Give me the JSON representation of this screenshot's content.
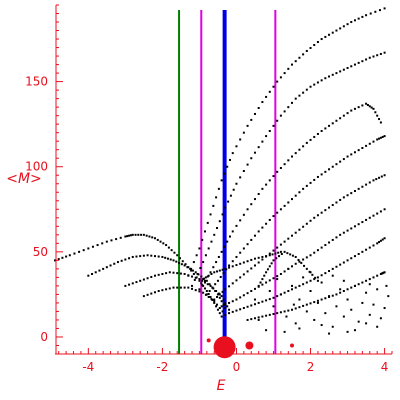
{
  "chart_data": {
    "type": "scatter",
    "title": "",
    "xlabel": "E",
    "ylabel": "<M>",
    "xlim": [
      -4.9,
      4.2
    ],
    "ylim": [
      -10,
      195
    ],
    "xticks": [
      -4,
      -2,
      0,
      2,
      4
    ],
    "yticks": [
      0,
      50,
      100,
      150
    ],
    "grid": false,
    "axis_color": "#e8101e",
    "point_color": "#000000",
    "vertical_lines": [
      {
        "x": -1.55,
        "color": "#008000",
        "width": 2
      },
      {
        "x": -0.95,
        "color": "#e000e0",
        "width": 2
      },
      {
        "x": -0.32,
        "color": "#0000e6",
        "width": 4
      },
      {
        "x": 1.05,
        "color": "#e000e0",
        "width": 2
      }
    ],
    "red_markers": [
      {
        "x": -0.32,
        "y": -6,
        "size": "large"
      },
      {
        "x": 0.35,
        "y": -5,
        "size": "small"
      },
      {
        "x": -0.75,
        "y": -2,
        "size": "tiny"
      },
      {
        "x": 1.5,
        "y": -5,
        "size": "tiny"
      }
    ],
    "series": [
      {
        "points": [
          [
            -4.9,
            45
          ],
          [
            -4.5,
            48
          ],
          [
            -4.0,
            52
          ],
          [
            -3.5,
            56
          ],
          [
            -3.0,
            59
          ],
          [
            -2.8,
            60
          ],
          [
            -2.5,
            60
          ],
          [
            -2.2,
            58
          ],
          [
            -1.9,
            54
          ],
          [
            -1.6,
            48
          ],
          [
            -1.3,
            41
          ],
          [
            -1.0,
            33
          ],
          [
            -0.8,
            27
          ],
          [
            -0.6,
            20
          ],
          [
            -0.4,
            12
          ]
        ]
      },
      {
        "points": [
          [
            -4.0,
            36
          ],
          [
            -3.6,
            40
          ],
          [
            -3.2,
            44
          ],
          [
            -2.8,
            47
          ],
          [
            -2.4,
            48
          ],
          [
            -2.0,
            47
          ],
          [
            -1.7,
            45
          ],
          [
            -1.4,
            42
          ],
          [
            -1.1,
            38
          ],
          [
            -0.8,
            33
          ],
          [
            -0.5,
            25
          ],
          [
            -0.3,
            17
          ]
        ]
      },
      {
        "points": [
          [
            -3.0,
            30
          ],
          [
            -2.6,
            33
          ],
          [
            -2.2,
            36
          ],
          [
            -1.8,
            38
          ],
          [
            -1.4,
            37
          ],
          [
            -1.0,
            34
          ],
          [
            -0.7,
            30
          ],
          [
            -0.4,
            24
          ],
          [
            -0.2,
            16
          ]
        ]
      },
      {
        "points": [
          [
            -2.5,
            24
          ],
          [
            -2.1,
            27
          ],
          [
            -1.7,
            29
          ],
          [
            -1.3,
            29
          ],
          [
            -0.9,
            26
          ],
          [
            -0.6,
            21
          ],
          [
            -0.3,
            13
          ]
        ]
      },
      {
        "points": [
          [
            -1.3,
            36
          ],
          [
            -1.0,
            52
          ],
          [
            -0.7,
            72
          ],
          [
            -0.4,
            92
          ],
          [
            -0.1,
            108
          ],
          [
            0.3,
            124
          ],
          [
            0.7,
            138
          ],
          [
            1.1,
            150
          ],
          [
            1.5,
            160
          ],
          [
            1.9,
            168
          ],
          [
            2.3,
            175
          ],
          [
            2.7,
            180
          ],
          [
            3.1,
            185
          ],
          [
            3.5,
            189
          ],
          [
            4.0,
            193
          ]
        ]
      },
      {
        "points": [
          [
            -1.2,
            30
          ],
          [
            -0.9,
            44
          ],
          [
            -0.6,
            60
          ],
          [
            -0.3,
            76
          ],
          [
            0.0,
            90
          ],
          [
            0.4,
            105
          ],
          [
            0.8,
            118
          ],
          [
            1.2,
            130
          ],
          [
            1.6,
            140
          ],
          [
            2.0,
            147
          ],
          [
            2.4,
            152
          ],
          [
            2.8,
            156
          ],
          [
            3.2,
            160
          ],
          [
            3.6,
            164
          ],
          [
            4.0,
            167
          ]
        ]
      },
      {
        "points": [
          [
            -1.0,
            28
          ],
          [
            -0.7,
            38
          ],
          [
            -0.4,
            50
          ],
          [
            -0.1,
            62
          ],
          [
            0.3,
            75
          ],
          [
            0.7,
            87
          ],
          [
            1.1,
            97
          ],
          [
            1.5,
            106
          ],
          [
            1.9,
            114
          ],
          [
            2.3,
            121
          ],
          [
            2.7,
            127
          ],
          [
            3.1,
            133
          ],
          [
            3.5,
            137
          ],
          [
            3.7,
            134
          ],
          [
            3.9,
            126
          ]
        ]
      },
      {
        "points": [
          [
            -0.8,
            25
          ],
          [
            -0.5,
            33
          ],
          [
            -0.2,
            42
          ],
          [
            0.2,
            52
          ],
          [
            0.6,
            62
          ],
          [
            1.0,
            71
          ],
          [
            1.4,
            79
          ],
          [
            1.8,
            87
          ],
          [
            2.2,
            94
          ],
          [
            2.6,
            100
          ],
          [
            3.0,
            106
          ],
          [
            3.4,
            111
          ],
          [
            3.8,
            116
          ],
          [
            4.0,
            118
          ]
        ]
      },
      {
        "points": [
          [
            -0.6,
            22
          ],
          [
            -0.3,
            28
          ],
          [
            0.1,
            35
          ],
          [
            0.5,
            42
          ],
          [
            0.9,
            49
          ],
          [
            1.3,
            56
          ],
          [
            1.7,
            63
          ],
          [
            2.1,
            70
          ],
          [
            2.5,
            76
          ],
          [
            2.9,
            82
          ],
          [
            3.3,
            87
          ],
          [
            3.7,
            92
          ],
          [
            4.0,
            95
          ]
        ]
      },
      {
        "points": [
          [
            -0.4,
            18
          ],
          [
            0.0,
            22
          ],
          [
            0.4,
            27
          ],
          [
            0.8,
            32
          ],
          [
            1.2,
            37
          ],
          [
            1.6,
            43
          ],
          [
            2.0,
            48
          ],
          [
            2.4,
            54
          ],
          [
            2.8,
            60
          ],
          [
            3.2,
            65
          ],
          [
            3.6,
            70
          ],
          [
            4.0,
            75
          ]
        ]
      },
      {
        "points": [
          [
            -0.2,
            14
          ],
          [
            0.2,
            17
          ],
          [
            0.6,
            20
          ],
          [
            1.0,
            23
          ],
          [
            1.4,
            27
          ],
          [
            1.8,
            31
          ],
          [
            2.2,
            35
          ],
          [
            2.6,
            40
          ],
          [
            3.0,
            45
          ],
          [
            3.4,
            50
          ],
          [
            3.8,
            55
          ],
          [
            4.0,
            58
          ]
        ]
      },
      {
        "points": [
          [
            0.3,
            10
          ],
          [
            0.7,
            12
          ],
          [
            1.1,
            14
          ],
          [
            1.5,
            16
          ],
          [
            1.9,
            19
          ],
          [
            2.3,
            22
          ],
          [
            2.7,
            25
          ],
          [
            3.1,
            29
          ],
          [
            3.5,
            33
          ],
          [
            3.9,
            37
          ],
          [
            4.0,
            38
          ]
        ]
      },
      {
        "points": [
          [
            -0.9,
            34
          ],
          [
            -0.6,
            38
          ],
          [
            -0.3,
            40
          ],
          [
            0.1,
            43
          ],
          [
            0.5,
            46
          ],
          [
            0.9,
            48
          ],
          [
            1.2,
            50
          ]
        ]
      },
      {
        "points": [
          [
            0.6,
            30
          ],
          [
            0.8,
            38
          ],
          [
            1.0,
            45
          ],
          [
            1.3,
            50
          ],
          [
            1.6,
            47
          ],
          [
            1.9,
            40
          ],
          [
            2.2,
            33
          ]
        ]
      }
    ],
    "scatter_cloud": [
      [
        1.0,
        18
      ],
      [
        1.2,
        25
      ],
      [
        1.35,
        12
      ],
      [
        1.5,
        30
      ],
      [
        1.6,
        8
      ],
      [
        1.7,
        22
      ],
      [
        1.8,
        35
      ],
      [
        1.9,
        15
      ],
      [
        2.0,
        27
      ],
      [
        2.1,
        10
      ],
      [
        2.2,
        20
      ],
      [
        2.3,
        32
      ],
      [
        2.4,
        14
      ],
      [
        2.5,
        24
      ],
      [
        2.6,
        6
      ],
      [
        2.7,
        18
      ],
      [
        2.8,
        28
      ],
      [
        2.9,
        12
      ],
      [
        3.0,
        22
      ],
      [
        3.1,
        16
      ],
      [
        3.2,
        30
      ],
      [
        3.3,
        9
      ],
      [
        3.4,
        20
      ],
      [
        3.5,
        26
      ],
      [
        3.6,
        13
      ],
      [
        3.7,
        19
      ],
      [
        3.8,
        28
      ],
      [
        3.9,
        11
      ],
      [
        4.0,
        17
      ],
      [
        4.1,
        24
      ],
      [
        1.1,
        34
      ],
      [
        1.4,
        40
      ],
      [
        1.7,
        5
      ],
      [
        2.0,
        38
      ],
      [
        2.3,
        7
      ],
      [
        2.6,
        36
      ],
      [
        2.9,
        33
      ],
      [
        3.2,
        4
      ],
      [
        3.5,
        8
      ],
      [
        3.8,
        6
      ],
      [
        0.6,
        10
      ],
      [
        0.8,
        4
      ],
      [
        0.5,
        22
      ],
      [
        0.9,
        27
      ],
      [
        1.3,
        3
      ],
      [
        2.5,
        2
      ],
      [
        3.0,
        3
      ],
      [
        3.6,
        31
      ],
      [
        4.05,
        30
      ],
      [
        1.55,
        19
      ]
    ]
  }
}
